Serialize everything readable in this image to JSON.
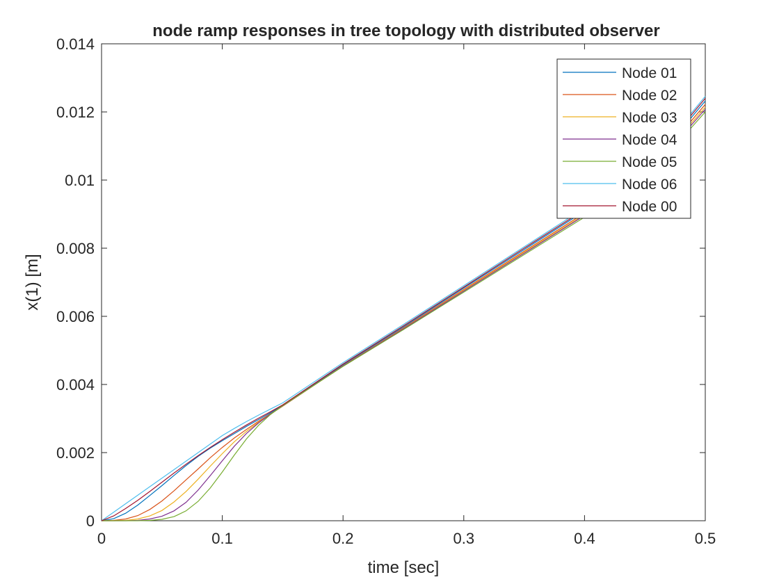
{
  "chart_data": {
    "type": "line",
    "title": "node ramp responses in tree topology with distributed observer",
    "xlabel": "time [sec]",
    "ylabel": "x(1) [m]",
    "xlim": [
      0,
      0.5
    ],
    "ylim": [
      0,
      0.014
    ],
    "xticks": [
      0,
      0.1,
      0.2,
      0.3,
      0.4,
      0.5
    ],
    "xtick_labels": [
      "0",
      "0.1",
      "0.2",
      "0.3",
      "0.4",
      "0.5"
    ],
    "yticks": [
      0,
      0.002,
      0.004,
      0.006,
      0.008,
      0.01,
      0.012,
      0.014
    ],
    "ytick_labels": [
      "0",
      "0.002",
      "0.004",
      "0.006",
      "0.008",
      "0.01",
      "0.012",
      "0.014"
    ],
    "grid": false,
    "legend_position": "top-right",
    "x": [
      0,
      0.01,
      0.02,
      0.03,
      0.04,
      0.05,
      0.06,
      0.07,
      0.08,
      0.09,
      0.1,
      0.11,
      0.12,
      0.13,
      0.14,
      0.15,
      0.2,
      0.25,
      0.3,
      0.35,
      0.4,
      0.45,
      0.5
    ],
    "series": [
      {
        "name": "Node 01",
        "color": "#0072bd",
        "values": [
          0,
          6e-05,
          0.00022,
          0.00046,
          0.00074,
          0.00103,
          0.00133,
          0.00162,
          0.00189,
          0.00213,
          0.00235,
          0.00256,
          0.00277,
          0.00297,
          0.00317,
          0.00339,
          0.00458,
          0.00569,
          0.00683,
          0.00796,
          0.00909,
          0.01022,
          0.01232
        ]
      },
      {
        "name": "Node 02",
        "color": "#d95319",
        "values": [
          0,
          1e-05,
          5e-05,
          0.00015,
          0.00033,
          0.00058,
          0.00088,
          0.0012,
          0.00152,
          0.00185,
          0.00215,
          0.00243,
          0.00268,
          0.00292,
          0.00314,
          0.00337,
          0.00455,
          0.00566,
          0.00679,
          0.00791,
          0.00903,
          0.01015,
          0.01222
        ]
      },
      {
        "name": "Node 03",
        "color": "#edb120",
        "values": [
          0,
          0.0,
          1e-05,
          5e-05,
          0.00014,
          0.0003,
          0.00055,
          0.00086,
          0.00122,
          0.0016,
          0.00197,
          0.00232,
          0.00262,
          0.00289,
          0.00313,
          0.00336,
          0.00454,
          0.00564,
          0.00676,
          0.00788,
          0.00899,
          0.01011,
          0.01214
        ]
      },
      {
        "name": "Node 04",
        "color": "#7e2f8e",
        "values": [
          0,
          0.0,
          0.0,
          1e-05,
          5e-05,
          0.00013,
          0.00029,
          0.00054,
          0.0009,
          0.00132,
          0.00176,
          0.00219,
          0.00256,
          0.00287,
          0.00313,
          0.00337,
          0.00454,
          0.00563,
          0.00674,
          0.00785,
          0.00896,
          0.01007,
          0.01208
        ]
      },
      {
        "name": "Node 05",
        "color": "#77ac30",
        "values": [
          0,
          0.0,
          0.0,
          0.0,
          1e-05,
          4e-05,
          0.00012,
          0.00029,
          0.00057,
          0.00096,
          0.00143,
          0.00193,
          0.0024,
          0.0028,
          0.00312,
          0.00338,
          0.00453,
          0.00561,
          0.00671,
          0.00781,
          0.00891,
          0.01001,
          0.012
        ]
      },
      {
        "name": "Node 06",
        "color": "#4dbeee",
        "values": [
          0,
          0.00025,
          0.0005,
          0.00075,
          0.001,
          0.00125,
          0.0015,
          0.00175,
          0.002,
          0.00225,
          0.0025,
          0.00271,
          0.00291,
          0.0031,
          0.00328,
          0.00346,
          0.00464,
          0.00576,
          0.0069,
          0.00804,
          0.00918,
          0.01032,
          0.01246
        ]
      },
      {
        "name": "Node 00",
        "color": "#a2142f",
        "values": [
          0,
          0.00014,
          0.00036,
          0.0006,
          0.00086,
          0.00113,
          0.0014,
          0.00166,
          0.00191,
          0.00215,
          0.00238,
          0.0026,
          0.00281,
          0.00301,
          0.0032,
          0.0034,
          0.0046,
          0.00572,
          0.00686,
          0.008,
          0.00913,
          0.01027,
          0.0124
        ]
      }
    ]
  }
}
